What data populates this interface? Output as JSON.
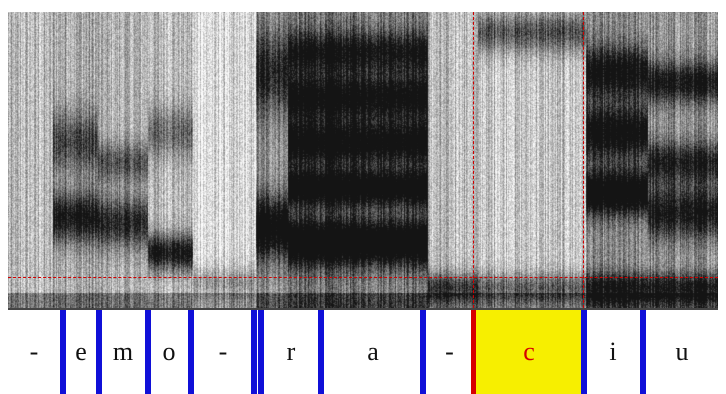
{
  "tier": {
    "segments": [
      {
        "label": "-",
        "selected": false
      },
      {
        "label": "e",
        "selected": false
      },
      {
        "label": "m",
        "selected": false
      },
      {
        "label": "o",
        "selected": false
      },
      {
        "label": "-",
        "selected": false
      },
      {
        "label": "r",
        "selected": false
      },
      {
        "label": "a",
        "selected": false
      },
      {
        "label": "-",
        "selected": false
      },
      {
        "label": "c",
        "selected": true
      },
      {
        "label": "i",
        "selected": false
      },
      {
        "label": "u",
        "selected": false
      }
    ]
  },
  "colors": {
    "boundary": "#1010d8",
    "selection_fill": "#f7ef00",
    "selection_text": "#d60000",
    "cursor_line": "#d00000"
  }
}
